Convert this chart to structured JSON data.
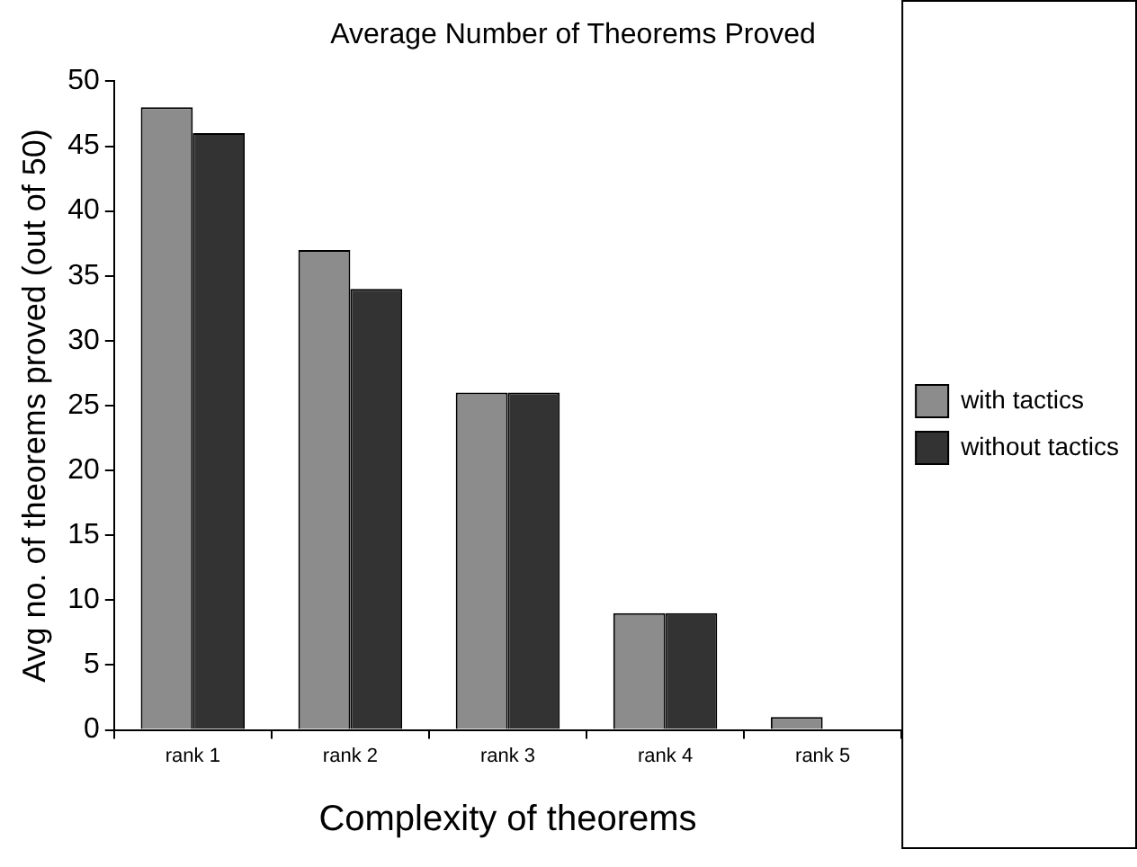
{
  "chart_data": {
    "type": "bar",
    "title": "Average Number of Theorems Proved",
    "xlabel": "Complexity of theorems",
    "ylabel": "Avg no. of theorems proved (out of 50)",
    "categories": [
      "rank 1",
      "rank 2",
      "rank 3",
      "rank 4",
      "rank 5"
    ],
    "series": [
      {
        "name": "with tactics",
        "color": "#8c8c8c",
        "values": [
          48,
          37,
          26,
          9,
          1
        ]
      },
      {
        "name": "without tactics",
        "color": "#333333",
        "values": [
          46,
          34,
          26,
          9,
          0
        ]
      }
    ],
    "ylim": [
      0,
      50
    ],
    "yticks": [
      0,
      5,
      10,
      15,
      20,
      25,
      30,
      35,
      40,
      45,
      50
    ],
    "grid": false,
    "legend": "right"
  }
}
